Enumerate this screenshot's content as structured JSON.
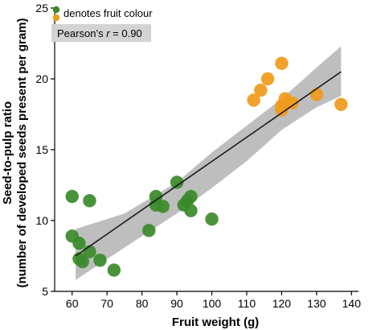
{
  "chart_data": {
    "type": "scatter",
    "xlabel": "Fruit weight (g)",
    "ylabel_line1": "Seed-to-pulp ratio",
    "ylabel_line2": "(number of developed seeds present per gram)",
    "xlim": [
      55,
      142
    ],
    "ylim": [
      5,
      25
    ],
    "xticks": [
      60,
      70,
      80,
      90,
      100,
      110,
      120,
      130,
      140
    ],
    "yticks": [
      5,
      10,
      15,
      20,
      25
    ],
    "legend": {
      "label": "denotes fruit colour",
      "colors": [
        "#3a8a2a",
        "#f09a1a"
      ]
    },
    "annotation": {
      "prefix": "Pearson’s ",
      "italic": "r",
      "suffix": " = 0.90"
    },
    "colors": {
      "green": "#3a8a2a",
      "orange": "#f09a1a",
      "band": "#a8a8a8",
      "line": "#1a1a1a"
    },
    "fit": {
      "x": [
        61,
        137
      ],
      "y": [
        7.5,
        20.5
      ],
      "band_x": [
        61,
        75,
        90,
        100,
        110,
        120,
        130,
        137
      ],
      "band_upper": [
        9.4,
        10.5,
        12.7,
        14.8,
        16.7,
        18.6,
        20.8,
        22.3
      ],
      "band_lower": [
        5.8,
        8.1,
        10.5,
        12.3,
        14.2,
        16.4,
        18.0,
        18.8
      ]
    },
    "series": [
      {
        "color": "green",
        "points": [
          [
            60,
            11.7
          ],
          [
            65,
            11.4
          ],
          [
            60,
            8.9
          ],
          [
            62,
            8.4
          ],
          [
            62,
            7.3
          ],
          [
            63,
            7.1
          ],
          [
            65,
            7.8
          ],
          [
            68,
            7.2
          ],
          [
            72,
            6.5
          ],
          [
            82,
            9.3
          ],
          [
            84,
            11.1
          ],
          [
            84,
            11.7
          ],
          [
            86,
            11.0
          ],
          [
            90,
            12.7
          ],
          [
            92,
            11.1
          ],
          [
            93,
            11.4
          ],
          [
            94,
            11.7
          ],
          [
            94,
            10.7
          ],
          [
            100,
            10.1
          ]
        ]
      },
      {
        "color": "orange",
        "points": [
          [
            112,
            18.5
          ],
          [
            114,
            19.2
          ],
          [
            116,
            20.0
          ],
          [
            120,
            21.1
          ],
          [
            120,
            18.1
          ],
          [
            120,
            17.8
          ],
          [
            121,
            18.6
          ],
          [
            123,
            18.3
          ],
          [
            130,
            18.9
          ],
          [
            137,
            18.2
          ]
        ]
      }
    ]
  }
}
